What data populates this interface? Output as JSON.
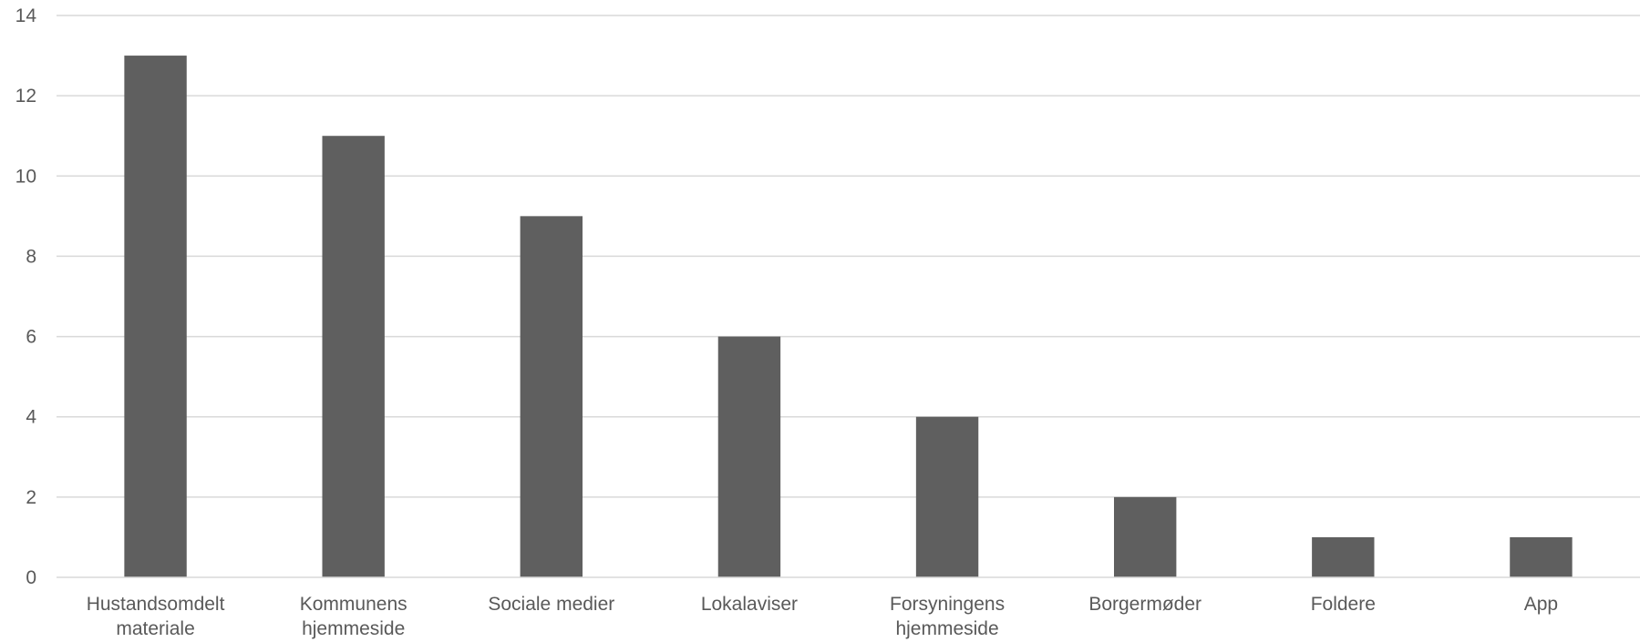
{
  "chart_data": {
    "type": "bar",
    "title": "",
    "xlabel": "",
    "ylabel": "",
    "categories": [
      "Hustandsomdelt materiale",
      "Kommunens hjemmeside",
      "Sociale medier",
      "Lokalaviser",
      "Forsyningens hjemmeside",
      "Borgermøder",
      "Foldere",
      "App"
    ],
    "category_lines": [
      [
        "Hustandsomdelt",
        "materiale"
      ],
      [
        "Kommunens",
        "hjemmeside"
      ],
      [
        "Sociale medier"
      ],
      [
        "Lokalaviser"
      ],
      [
        "Forsyningens",
        "hjemmeside"
      ],
      [
        "Borgermøder"
      ],
      [
        "Foldere"
      ],
      [
        "App"
      ]
    ],
    "values": [
      13,
      11,
      9,
      6,
      4,
      2,
      1,
      1
    ],
    "ylim": [
      0,
      14
    ],
    "yticks": [
      0,
      2,
      4,
      6,
      8,
      10,
      12,
      14
    ],
    "grid": true,
    "legend": "none",
    "colors": {
      "bar": "#5f5f5f",
      "grid": "#d9d9d9",
      "text": "#595959"
    }
  }
}
